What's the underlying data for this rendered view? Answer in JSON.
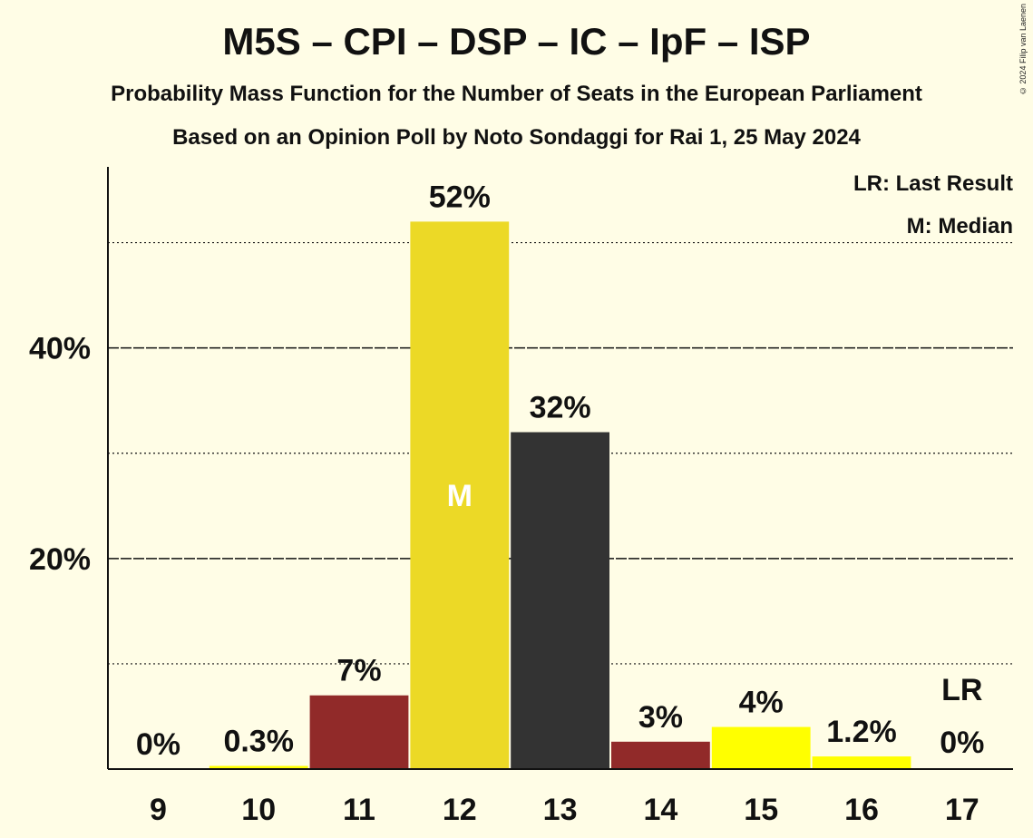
{
  "title": "M5S – CPI – DSP – IC – IpF – ISP",
  "subtitle1": "Probability Mass Function for the Number of Seats in the European Parliament",
  "subtitle2": "Based on an Opinion Poll by Noto Sondaggi for Rai 1, 25 May 2024",
  "copyright": "© 2024 Filip van Laenen",
  "legend": {
    "lr": "LR: Last Result",
    "m": "M: Median"
  },
  "colors": {
    "background": "#fffde6",
    "median_bar": "#ecd926",
    "red": "#912a29",
    "dark": "#333333",
    "yellow": "#ffff00"
  },
  "chart_data": {
    "type": "bar",
    "title": "M5S – CPI – DSP – IC – IpF – ISP",
    "categories": [
      "9",
      "10",
      "11",
      "12",
      "13",
      "14",
      "15",
      "16",
      "17"
    ],
    "values": [
      0,
      0.3,
      7,
      52,
      32,
      2.6,
      4,
      1.2,
      0
    ],
    "value_labels": [
      "0%",
      "0.3%",
      "7%",
      "52%",
      "32%",
      "3%",
      "4%",
      "1.2%",
      "0%"
    ],
    "bar_colors": [
      "#912a29",
      "#ffff00",
      "#912a29",
      "#ecd926",
      "#333333",
      "#912a29",
      "#ffff00",
      "#ffff00",
      "#912a29"
    ],
    "median_category": "12",
    "median_marker": "M",
    "last_result_category": "17",
    "last_result_marker": "LR",
    "ylim": [
      0,
      57.2
    ],
    "y_ticks": [
      20,
      40
    ],
    "y_tick_labels": [
      "20%",
      "40%"
    ],
    "minor_gridlines": [
      10,
      30,
      50
    ],
    "ylabel": "",
    "xlabel": "",
    "legend_position": "top-right"
  }
}
